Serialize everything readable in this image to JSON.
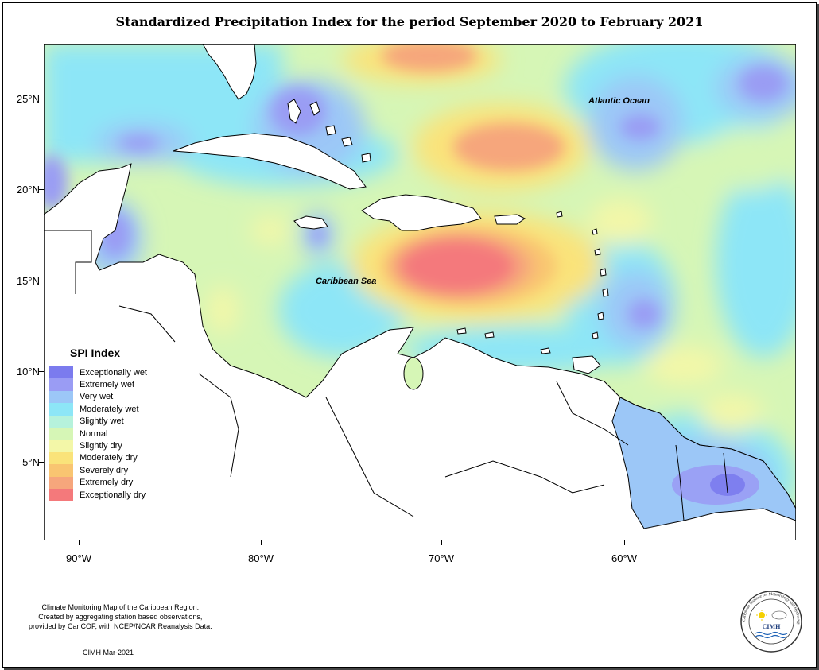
{
  "title": "Standardized Precipitation Index for the period September 2020 to February 2021",
  "map": {
    "ocean_labels": {
      "atlantic": "Atlantic Ocean",
      "caribbean": "Caribbean Sea"
    },
    "lat_ticks": [
      "25°N",
      "20°N",
      "15°N",
      "10°N",
      "5°N"
    ],
    "lon_ticks": [
      "90°W",
      "80°W",
      "70°W",
      "60°W"
    ]
  },
  "legend": {
    "title": "SPI Index",
    "items": [
      {
        "label": "Exceptionally wet",
        "color": "#7b7bee"
      },
      {
        "label": "Extremely wet",
        "color": "#9a9cf4"
      },
      {
        "label": "Very wet",
        "color": "#9cc7f7"
      },
      {
        "label": "Moderately wet",
        "color": "#8de6f7"
      },
      {
        "label": "Slightly wet",
        "color": "#b6f2dc"
      },
      {
        "label": "Normal",
        "color": "#d6f6b6"
      },
      {
        "label": "Slightly dry",
        "color": "#f3f7a8"
      },
      {
        "label": "Moderately dry",
        "color": "#fae37a"
      },
      {
        "label": "Severely dry",
        "color": "#f9c571"
      },
      {
        "label": "Extremely dry",
        "color": "#f6a67c"
      },
      {
        "label": "Exceptionally dry",
        "color": "#f4797b"
      }
    ]
  },
  "footer": {
    "line1": "Climate Monitoring Map of the Caribbean Region.",
    "line2": "Created by aggregating station based observations,",
    "line3": "provided by CariCOF, with NCEP/NCAR Reanalysis Data.",
    "credit": "CIMH Mar-2021"
  },
  "logo": {
    "text": "CIMH",
    "ring_text": "Caribbean Institute for Meteorology and Hydrology"
  }
}
